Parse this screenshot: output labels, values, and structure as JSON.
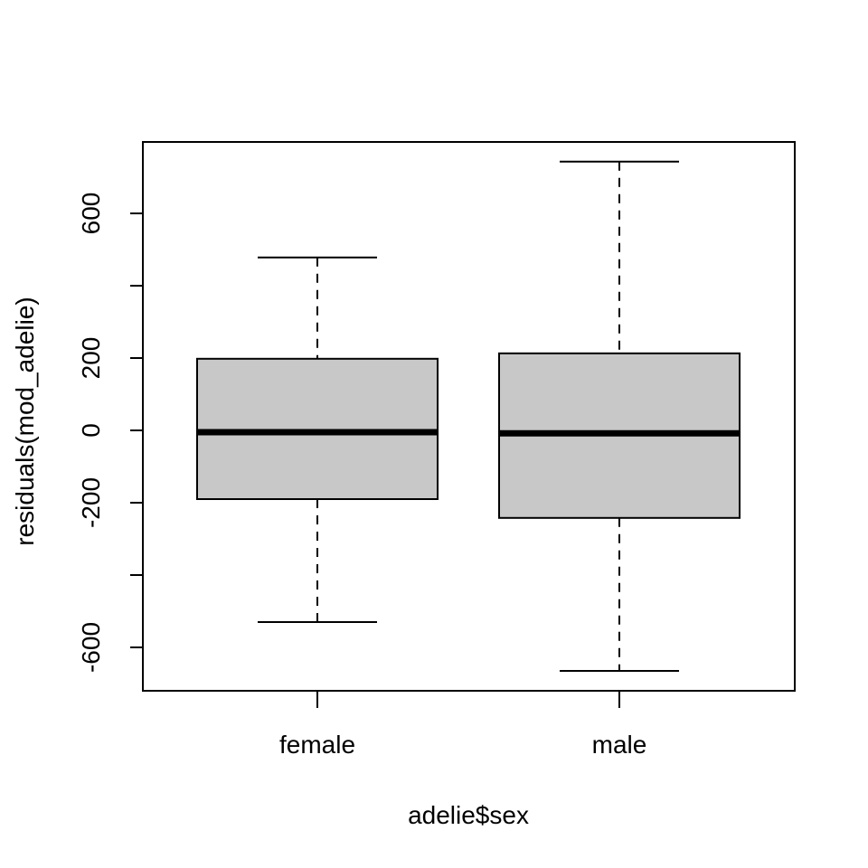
{
  "chart_data": {
    "type": "boxplot",
    "title": "",
    "xlabel": "adelie$sex",
    "ylabel": "residuals(mod_adelie)",
    "ylim": [
      -720,
      800
    ],
    "categories": [
      "female",
      "male"
    ],
    "y_ticks": [
      -600,
      -400,
      -200,
      0,
      200,
      400,
      600
    ],
    "y_tick_labels": [
      "-600",
      "",
      "-200",
      "0",
      "200",
      "",
      "600"
    ],
    "box_fill": "#c8c8c8",
    "grid": false,
    "boxes": [
      {
        "name": "female",
        "whisker_low": -530,
        "q1": -190,
        "median": -5,
        "q3": 198,
        "whisker_high": 478
      },
      {
        "name": "male",
        "whisker_low": -665,
        "q1": -242,
        "median": -8,
        "q3": 213,
        "whisker_high": 743
      }
    ]
  }
}
